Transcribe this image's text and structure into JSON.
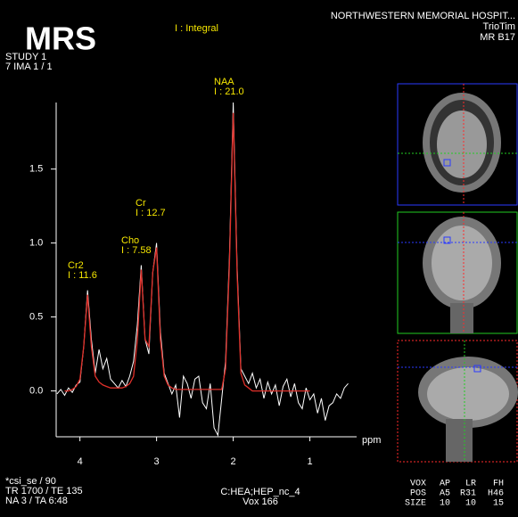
{
  "screen": {
    "badge": "MRS",
    "legend_note": "I : Integral",
    "institution": "NORTHWESTERN MEMORIAL HOSPIT...",
    "scanner": "TrioTim",
    "software": "MR B17",
    "study": "STUDY 1",
    "image": "7 IMA 1 / 1",
    "sequence": "*csi_se / 90",
    "timing": "TR 1700 / TE 135",
    "averages": "NA 3 / TA 6:48",
    "coil": "C:HEA;HEP_nc_4",
    "voxel": "Vox 166",
    "voxel_table": {
      "header": [
        "VOX",
        "AP",
        "LR",
        "FH"
      ],
      "rows": [
        [
          "POS",
          "A5",
          "R31",
          "H46"
        ],
        [
          "SIZE",
          "10",
          "10",
          "15"
        ]
      ]
    }
  },
  "chart_data": {
    "type": "line",
    "x_label": "ppm",
    "xlim": [
      4.31,
      0.39
    ],
    "xticks": [
      4,
      3,
      2,
      1
    ],
    "ylim": [
      -0.31,
      1.95
    ],
    "yticks": [
      {
        "value": 0,
        "label": "0.0"
      },
      0.5,
      {
        "value": 1,
        "label": "1.0"
      },
      1.5
    ],
    "annotations": [
      {
        "name": "Cr2",
        "integral": "I : 11.6"
      },
      {
        "name": "Cho",
        "integral": "I : 7.58"
      },
      {
        "name": "Cr",
        "integral": "I : 12.7"
      },
      {
        "name": "NAA",
        "integral": "I : 21.0"
      }
    ],
    "x": [
      4.3,
      4.25,
      4.2,
      4.15,
      4.1,
      4.05,
      4.0,
      3.95,
      3.9,
      3.85,
      3.8,
      3.75,
      3.7,
      3.65,
      3.6,
      3.55,
      3.5,
      3.45,
      3.4,
      3.35,
      3.3,
      3.25,
      3.2,
      3.15,
      3.1,
      3.05,
      3.0,
      2.95,
      2.9,
      2.85,
      2.8,
      2.75,
      2.7,
      2.65,
      2.6,
      2.55,
      2.5,
      2.45,
      2.4,
      2.35,
      2.3,
      2.25,
      2.2,
      2.15,
      2.1,
      2.05,
      2.0,
      1.95,
      1.9,
      1.85,
      1.8,
      1.75,
      1.7,
      1.65,
      1.6,
      1.55,
      1.5,
      1.45,
      1.4,
      1.35,
      1.3,
      1.25,
      1.2,
      1.15,
      1.1,
      1.05,
      1.0,
      0.95,
      0.9,
      0.85,
      0.8,
      0.75,
      0.7,
      0.65,
      0.6,
      0.55,
      0.5
    ],
    "series": [
      {
        "color": "#ffffff",
        "values": [
          -0.02,
          0.01,
          -0.03,
          0.02,
          -0.01,
          0.04,
          0.06,
          0.3,
          0.68,
          0.35,
          0.12,
          0.28,
          0.15,
          0.22,
          0.08,
          0.05,
          0.02,
          0.07,
          0.03,
          0.1,
          0.2,
          0.45,
          0.85,
          0.35,
          0.25,
          0.8,
          1.0,
          0.4,
          0.12,
          0.05,
          -0.02,
          0.04,
          -0.18,
          0.1,
          0.05,
          -0.05,
          0.08,
          0.1,
          -0.08,
          -0.12,
          0.05,
          -0.25,
          -0.3,
          -0.05,
          0.2,
          0.9,
          1.95,
          0.85,
          0.15,
          0.1,
          0.05,
          0.12,
          0.02,
          0.08,
          -0.05,
          0.06,
          -0.02,
          0.04,
          -0.1,
          0.03,
          0.08,
          -0.04,
          0.05,
          -0.08,
          -0.12,
          0.02,
          -0.06,
          -0.02,
          -0.15,
          -0.05,
          -0.2,
          -0.1,
          -0.08,
          -0.02,
          -0.05,
          0.02,
          0.05
        ]
      },
      {
        "color": "#e0302a",
        "values": [
          null,
          null,
          0.0,
          0.0,
          0.01,
          0.03,
          0.08,
          0.3,
          0.65,
          0.3,
          0.1,
          0.06,
          0.04,
          0.03,
          0.02,
          0.02,
          0.02,
          0.02,
          0.03,
          0.05,
          0.1,
          0.35,
          0.82,
          0.35,
          0.3,
          0.8,
          0.97,
          0.35,
          0.1,
          0.04,
          0.02,
          0.01,
          0.01,
          0.01,
          0.01,
          0.01,
          0.01,
          0.01,
          0.01,
          0.01,
          0.01,
          0.01,
          0.01,
          0.01,
          0.15,
          0.85,
          1.88,
          0.8,
          0.12,
          0.04,
          0.02,
          0.0,
          0.0,
          0.0,
          0.0,
          0.0,
          0.0,
          0.0,
          0.0,
          0.0,
          0.0,
          0.0,
          0.0,
          0.0,
          0.0,
          0.0,
          0.0,
          null,
          null,
          null,
          null,
          null,
          null,
          null,
          null,
          null,
          null
        ]
      }
    ]
  }
}
